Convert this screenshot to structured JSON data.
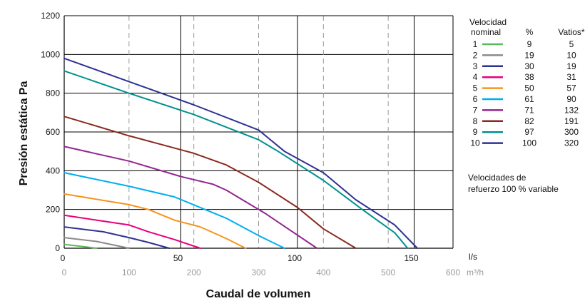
{
  "chart_data": {
    "type": "line",
    "xlabel": "Caudal de volumen",
    "ylabel": "Presión estática Pa",
    "ylim": [
      0,
      1200
    ],
    "y_ticks": [
      0,
      200,
      400,
      600,
      800,
      1000,
      1200
    ],
    "x_unit_primary": "l/s",
    "x_unit_secondary": "m³/h",
    "x_ticks_primary": [
      0,
      50,
      100,
      150
    ],
    "x_ticks_secondary": [
      0,
      100,
      200,
      300,
      400,
      500,
      600
    ],
    "xlim_m3h": [
      0,
      600
    ],
    "grid": true,
    "legend": {
      "position": "right",
      "header_speed": [
        "Velocidad",
        "nominal"
      ],
      "header_pct": "%",
      "header_watts": "Vatios*",
      "footnote": [
        "Velocidades de",
        "refuerzo 100 % variable"
      ]
    },
    "series": [
      {
        "name": "1",
        "pct": "9",
        "watts": "5",
        "color": "#5cb85c",
        "x": [
          0,
          25,
          50
        ],
        "y": [
          20,
          10,
          0
        ]
      },
      {
        "name": "2",
        "pct": "19",
        "watts": "10",
        "color": "#8a8a8a",
        "x": [
          0,
          50,
          100
        ],
        "y": [
          55,
          35,
          0
        ]
      },
      {
        "name": "3",
        "pct": "30",
        "watts": "19",
        "color": "#2e3192",
        "x": [
          0,
          60,
          100,
          130,
          162
        ],
        "y": [
          110,
          85,
          55,
          30,
          0
        ]
      },
      {
        "name": "4",
        "pct": "38",
        "watts": "31",
        "color": "#e6007e",
        "x": [
          0,
          60,
          100,
          130,
          170,
          210
        ],
        "y": [
          170,
          140,
          120,
          85,
          45,
          0
        ]
      },
      {
        "name": "5",
        "pct": "50",
        "watts": "57",
        "color": "#f7941d",
        "x": [
          0,
          100,
          130,
          170,
          210,
          250,
          280
        ],
        "y": [
          280,
          225,
          200,
          145,
          110,
          50,
          0
        ]
      },
      {
        "name": "6",
        "pct": "61",
        "watts": "90",
        "color": "#00aeef",
        "x": [
          0,
          100,
          170,
          250,
          300,
          340
        ],
        "y": [
          390,
          320,
          265,
          155,
          65,
          0
        ]
      },
      {
        "name": "7",
        "pct": "71",
        "watts": "132",
        "color": "#93278f",
        "x": [
          0,
          100,
          180,
          230,
          250,
          310,
          390
        ],
        "y": [
          525,
          450,
          370,
          330,
          300,
          180,
          0
        ]
      },
      {
        "name": "8",
        "pct": "82",
        "watts": "191",
        "color": "#8b2a1e",
        "x": [
          0,
          100,
          200,
          250,
          300,
          360,
          400,
          450
        ],
        "y": [
          680,
          580,
          490,
          430,
          340,
          210,
          100,
          0
        ]
      },
      {
        "name": "9",
        "pct": "97",
        "watts": "300",
        "color": "#00918e",
        "x": [
          0,
          100,
          200,
          300,
          330,
          400,
          460,
          510,
          530
        ],
        "y": [
          915,
          800,
          690,
          560,
          500,
          350,
          200,
          80,
          0
        ]
      },
      {
        "name": "10",
        "pct": "100",
        "watts": "320",
        "color": "#2e3192",
        "x": [
          0,
          100,
          200,
          300,
          340,
          400,
          450,
          510,
          545
        ],
        "y": [
          980,
          860,
          740,
          610,
          500,
          390,
          250,
          120,
          0
        ]
      }
    ]
  }
}
